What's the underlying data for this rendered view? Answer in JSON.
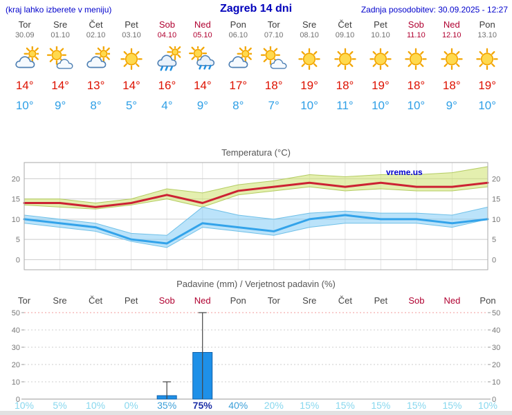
{
  "header": {
    "left": "(kraj lahko izberete v meniju)",
    "title": "Zagreb 14 dni",
    "right": "Zadnja posodobitev: 30.09.2025 - 12:27"
  },
  "watermark": "vreme.us",
  "days": [
    {
      "name": "Tor",
      "date": "30.09",
      "icon": "mostly-cloudy",
      "tmax": "14°",
      "tmin": "10°",
      "weekend": false
    },
    {
      "name": "Sre",
      "date": "01.10",
      "icon": "partly-cloudy",
      "tmax": "14°",
      "tmin": "9°",
      "weekend": false
    },
    {
      "name": "Čet",
      "date": "02.10",
      "icon": "mostly-cloudy",
      "tmax": "13°",
      "tmin": "8°",
      "weekend": false
    },
    {
      "name": "Pet",
      "date": "03.10",
      "icon": "sunny",
      "tmax": "14°",
      "tmin": "5°",
      "weekend": false
    },
    {
      "name": "Sob",
      "date": "04.10",
      "icon": "rain",
      "tmax": "16°",
      "tmin": "4°",
      "weekend": true
    },
    {
      "name": "Ned",
      "date": "05.10",
      "icon": "rain-sun",
      "tmax": "14°",
      "tmin": "9°",
      "weekend": true
    },
    {
      "name": "Pon",
      "date": "06.10",
      "icon": "mostly-cloudy",
      "tmax": "17°",
      "tmin": "8°",
      "weekend": false
    },
    {
      "name": "Tor",
      "date": "07.10",
      "icon": "partly-cloudy",
      "tmax": "18°",
      "tmin": "7°",
      "weekend": false
    },
    {
      "name": "Sre",
      "date": "08.10",
      "icon": "sunny",
      "tmax": "19°",
      "tmin": "10°",
      "weekend": false
    },
    {
      "name": "Čet",
      "date": "09.10",
      "icon": "sunny",
      "tmax": "18°",
      "tmin": "11°",
      "weekend": false
    },
    {
      "name": "Pet",
      "date": "10.10",
      "icon": "sunny",
      "tmax": "19°",
      "tmin": "10°",
      "weekend": false
    },
    {
      "name": "Sob",
      "date": "11.10",
      "icon": "sunny",
      "tmax": "18°",
      "tmin": "10°",
      "weekend": true
    },
    {
      "name": "Ned",
      "date": "12.10",
      "icon": "sunny",
      "tmax": "18°",
      "tmin": "9°",
      "weekend": true
    },
    {
      "name": "Pon",
      "date": "13.10",
      "icon": "sunny",
      "tmax": "19°",
      "tmin": "10°",
      "weekend": false
    }
  ],
  "chart_data": [
    {
      "type": "line",
      "title": "Temperatura (°C)",
      "x_labels": [
        "Tor",
        "Sre",
        "Čet",
        "Pet",
        "Sob",
        "Ned",
        "Pon",
        "Tor",
        "Sre",
        "Čet",
        "Pet",
        "Sob",
        "Ned",
        "Pon"
      ],
      "yticks": [
        0,
        5,
        10,
        15,
        20
      ],
      "ylim": [
        -2.5,
        24
      ],
      "grid": true,
      "series": [
        {
          "name": "max_temp",
          "color": "#cc2233",
          "edge_color": "#b4cc62",
          "band_color": "rgba(205,225,110,0.55)",
          "values": [
            14,
            14,
            13,
            14,
            16,
            14,
            17,
            18,
            19,
            18,
            19,
            18,
            18,
            19
          ],
          "band_hi": [
            15,
            15,
            14,
            15,
            17.5,
            16.5,
            18.5,
            19.5,
            21,
            20.5,
            21,
            21,
            21.5,
            23
          ],
          "band_lo": [
            13.5,
            13,
            12.5,
            13.5,
            15,
            13,
            16,
            17,
            18,
            17,
            17.5,
            17,
            17,
            18
          ]
        },
        {
          "name": "min_temp",
          "color": "#33a3ea",
          "edge_color": "#6fc0e8",
          "band_color": "rgba(120,200,245,0.5)",
          "values": [
            10,
            9,
            8,
            5,
            4,
            9,
            8,
            7,
            10,
            11,
            10,
            10,
            9,
            10
          ],
          "band_hi": [
            11,
            10,
            9,
            6.5,
            6,
            13,
            11,
            10,
            11.5,
            12,
            11.5,
            11.5,
            11,
            13
          ],
          "band_lo": [
            9,
            8,
            7,
            4.5,
            3,
            8,
            7,
            6,
            8,
            9,
            9,
            9,
            8,
            10
          ]
        }
      ]
    },
    {
      "type": "bar",
      "title": "Padavine (mm) / Verjetnost padavin (%)",
      "x_labels": [
        "Tor",
        "Sre",
        "Čet",
        "Pet",
        "Sob",
        "Ned",
        "Pon",
        "Tor",
        "Sre",
        "Čet",
        "Pet",
        "Sob",
        "Ned",
        "Pon"
      ],
      "yticks": [
        0,
        10,
        20,
        30,
        40,
        50
      ],
      "ylim": [
        0,
        52
      ],
      "bar_color": "#1e90e8",
      "bar_edge_color": "#1060a8",
      "precip_mm": [
        0,
        0,
        0,
        0,
        2,
        27,
        0,
        0,
        0,
        0,
        0,
        0,
        0,
        0
      ],
      "precip_max_mm": [
        0,
        0,
        0,
        0,
        10,
        50,
        0,
        0,
        0,
        0,
        0,
        0,
        0,
        0
      ],
      "probability_pct": [
        10,
        5,
        10,
        0,
        35,
        75,
        40,
        20,
        15,
        15,
        15,
        15,
        15,
        10
      ],
      "probability_labels": [
        "10%",
        "5%",
        "10%",
        "0%",
        "35%",
        "75%",
        "40%",
        "20%",
        "15%",
        "15%",
        "15%",
        "15%",
        "15%",
        "10%"
      ]
    }
  ]
}
